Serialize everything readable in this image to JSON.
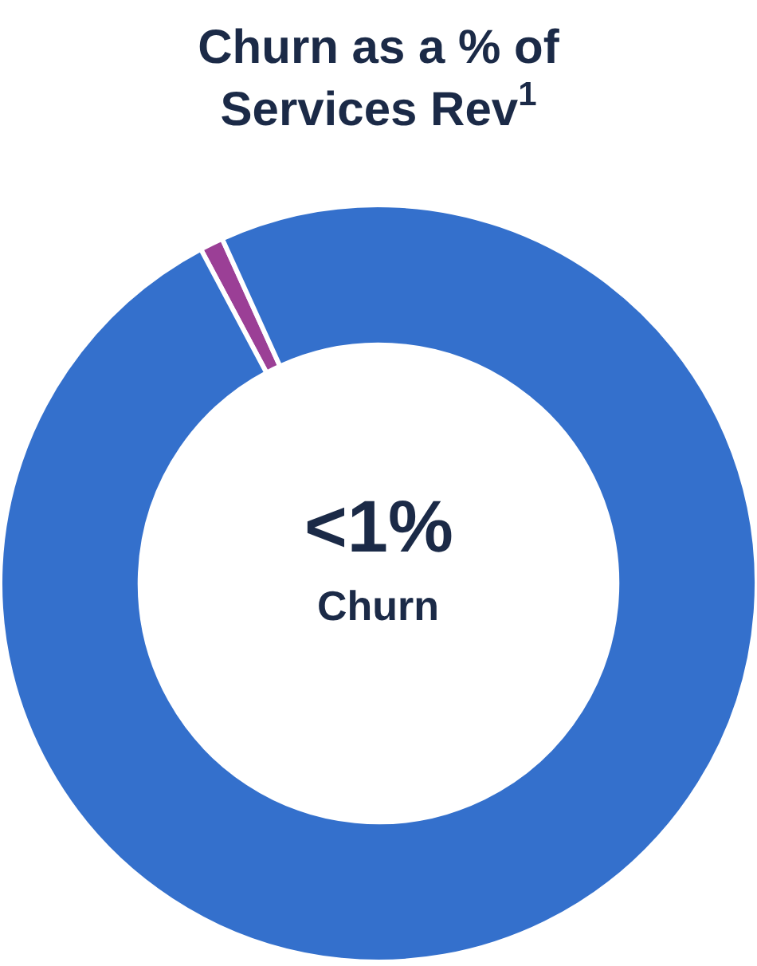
{
  "chart_data": {
    "type": "donut",
    "title": "Churn as a % of\nServices Rev$^{1}$",
    "categories": [
      null,
      null
    ],
    "values": [
      1,
      99
    ],
    "colors": [
      "#9b3f96",
      "#3470cc"
    ],
    "annotations": [
      "<1%",
      "Churn"
    ],
    "legend": false
  }
}
